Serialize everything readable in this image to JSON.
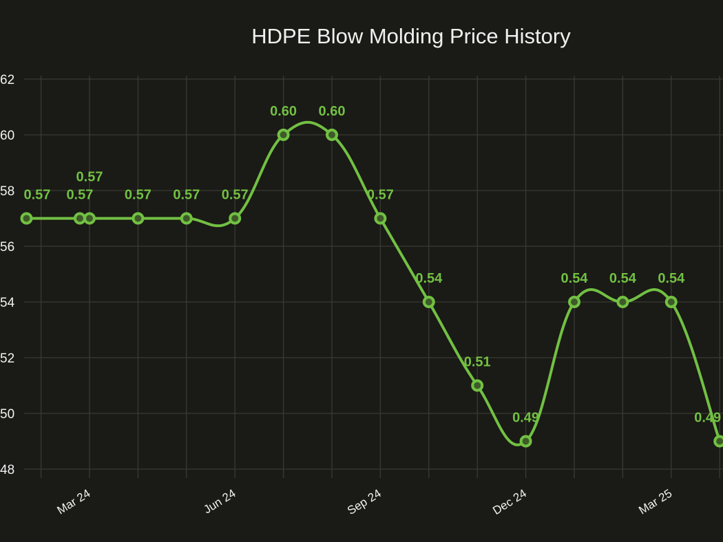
{
  "chart_data": {
    "type": "line",
    "title": "HDPE Blow Molding Price History",
    "xlabel": "",
    "ylabel": "",
    "ylim": [
      0.48,
      0.62
    ],
    "y_ticks": [
      "62",
      "60",
      "58",
      "56",
      "54",
      "52",
      "50",
      "48"
    ],
    "y_tick_values": [
      0.62,
      0.6,
      0.58,
      0.56,
      0.54,
      0.52,
      0.5,
      0.48
    ],
    "x_ticks": [
      {
        "label": "Mar 24",
        "month": 2
      },
      {
        "label": "Jun 24",
        "month": 5
      },
      {
        "label": "Sep 24",
        "month": 8
      },
      {
        "label": "Dec 24",
        "month": 11
      },
      {
        "label": "Mar 25",
        "month": 14
      }
    ],
    "grid": true,
    "series": [
      {
        "name": "HDPE Blow Molding",
        "color": "#72c043",
        "points": [
          {
            "month": 0.7,
            "value": 0.57,
            "label": "0.57"
          },
          {
            "month": 1.8,
            "value": 0.57,
            "label": "0.57"
          },
          {
            "month": 2.0,
            "value": 0.57,
            "label": "0.57"
          },
          {
            "month": 3.0,
            "value": 0.57,
            "label": "0.57"
          },
          {
            "month": 4.0,
            "value": 0.57,
            "label": "0.57"
          },
          {
            "month": 5.0,
            "value": 0.57,
            "label": "0.57"
          },
          {
            "month": 6.0,
            "value": 0.6,
            "label": "0.60"
          },
          {
            "month": 7.0,
            "value": 0.6,
            "label": "0.60"
          },
          {
            "month": 8.0,
            "value": 0.57,
            "label": "0.57"
          },
          {
            "month": 9.0,
            "value": 0.54,
            "label": "0.54"
          },
          {
            "month": 10.0,
            "value": 0.51,
            "label": "0.51"
          },
          {
            "month": 11.0,
            "value": 0.49,
            "label": "0.49"
          },
          {
            "month": 12.0,
            "value": 0.54,
            "label": "0.54"
          },
          {
            "month": 13.0,
            "value": 0.54,
            "label": "0.54"
          },
          {
            "month": 14.0,
            "value": 0.54,
            "label": "0.54"
          },
          {
            "month": 15.0,
            "value": 0.49,
            "label": "0.49"
          }
        ]
      }
    ]
  }
}
